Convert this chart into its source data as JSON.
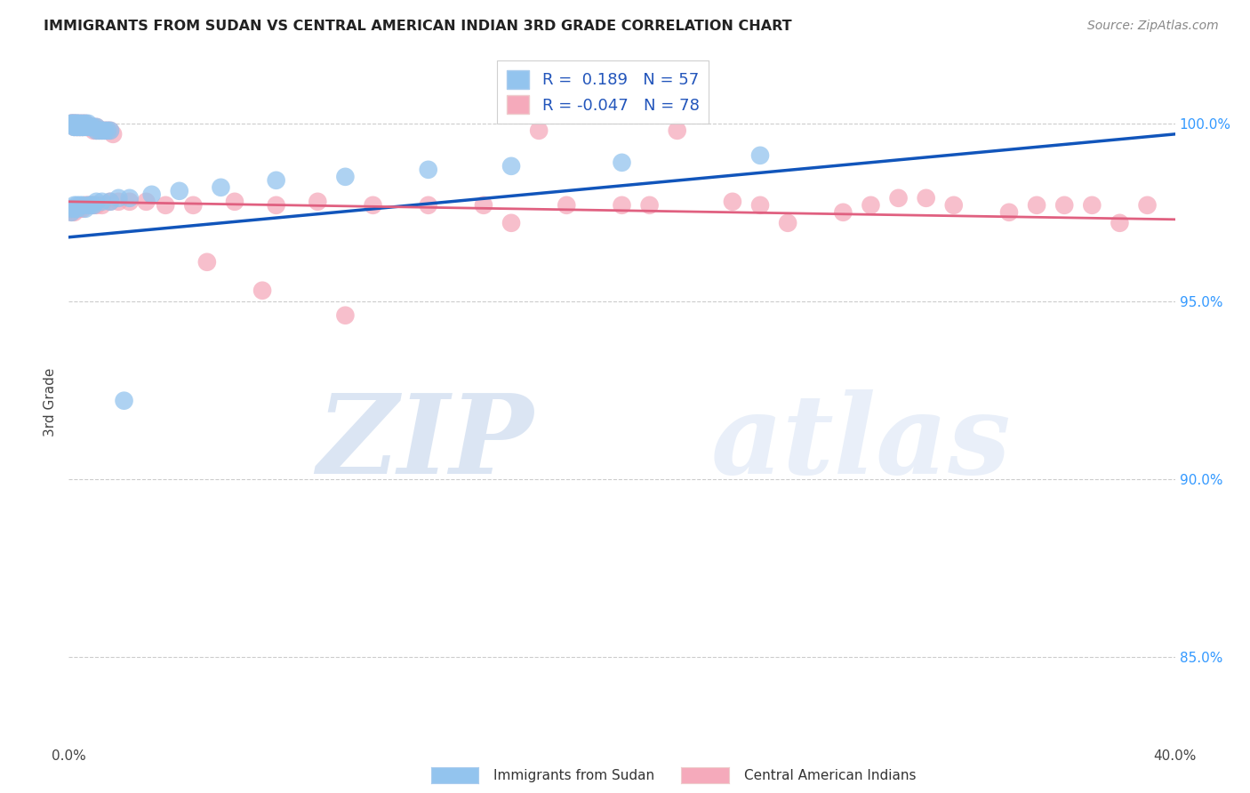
{
  "title": "IMMIGRANTS FROM SUDAN VS CENTRAL AMERICAN INDIAN 3RD GRADE CORRELATION CHART",
  "source": "Source: ZipAtlas.com",
  "ylabel": "3rd Grade",
  "x_min": 0.0,
  "x_max": 0.4,
  "y_min": 0.825,
  "y_max": 1.018,
  "y_ticks": [
    0.85,
    0.9,
    0.95,
    1.0
  ],
  "y_tick_labels": [
    "85.0%",
    "90.0%",
    "95.0%",
    "100.0%"
  ],
  "legend1_label": "Immigrants from Sudan",
  "legend2_label": "Central American Indians",
  "R1": 0.189,
  "N1": 57,
  "R2": -0.047,
  "N2": 78,
  "color_blue": "#93C4EE",
  "color_pink": "#F5AABB",
  "color_blue_line": "#1155BB",
  "color_pink_line": "#E06080",
  "watermark_zip": "ZIP",
  "watermark_atlas": "atlas",
  "grid_color": "#CCCCCC",
  "blue_x": [
    0.001,
    0.001,
    0.002,
    0.002,
    0.002,
    0.002,
    0.003,
    0.003,
    0.003,
    0.003,
    0.004,
    0.004,
    0.004,
    0.005,
    0.005,
    0.005,
    0.006,
    0.006,
    0.007,
    0.007,
    0.008,
    0.008,
    0.009,
    0.01,
    0.01,
    0.011,
    0.012,
    0.013,
    0.014,
    0.015,
    0.001,
    0.001,
    0.002,
    0.002,
    0.003,
    0.003,
    0.004,
    0.005,
    0.006,
    0.007,
    0.008,
    0.009,
    0.01,
    0.012,
    0.015,
    0.018,
    0.022,
    0.03,
    0.04,
    0.055,
    0.075,
    0.1,
    0.13,
    0.16,
    0.2,
    0.25,
    0.02
  ],
  "blue_y": [
    1.0,
    1.0,
    1.0,
    1.0,
    0.999,
    0.999,
    1.0,
    1.0,
    0.999,
    0.999,
    1.0,
    0.999,
    0.999,
    1.0,
    0.999,
    0.999,
    1.0,
    0.999,
    0.999,
    1.0,
    0.999,
    0.999,
    0.999,
    0.999,
    0.998,
    0.998,
    0.998,
    0.998,
    0.998,
    0.998,
    0.975,
    0.976,
    0.976,
    0.977,
    0.977,
    0.976,
    0.977,
    0.977,
    0.976,
    0.977,
    0.977,
    0.977,
    0.978,
    0.978,
    0.978,
    0.979,
    0.979,
    0.98,
    0.981,
    0.982,
    0.984,
    0.985,
    0.987,
    0.988,
    0.989,
    0.991,
    0.922
  ],
  "pink_x": [
    0.001,
    0.001,
    0.002,
    0.002,
    0.002,
    0.003,
    0.003,
    0.003,
    0.004,
    0.004,
    0.004,
    0.005,
    0.005,
    0.005,
    0.006,
    0.006,
    0.007,
    0.007,
    0.008,
    0.008,
    0.009,
    0.009,
    0.01,
    0.01,
    0.011,
    0.012,
    0.013,
    0.014,
    0.015,
    0.016,
    0.001,
    0.001,
    0.002,
    0.002,
    0.003,
    0.004,
    0.005,
    0.006,
    0.007,
    0.008,
    0.009,
    0.01,
    0.012,
    0.015,
    0.018,
    0.022,
    0.028,
    0.035,
    0.045,
    0.06,
    0.075,
    0.09,
    0.11,
    0.13,
    0.15,
    0.18,
    0.21,
    0.25,
    0.29,
    0.32,
    0.35,
    0.37,
    0.39,
    0.16,
    0.2,
    0.24,
    0.28,
    0.31,
    0.34,
    0.36,
    0.38,
    0.3,
    0.17,
    0.22,
    0.26,
    0.05,
    0.07,
    0.1
  ],
  "pink_y": [
    1.0,
    1.0,
    1.0,
    1.0,
    0.999,
    0.999,
    1.0,
    0.999,
    1.0,
    0.999,
    0.999,
    1.0,
    0.999,
    0.999,
    1.0,
    0.999,
    0.999,
    0.999,
    0.999,
    0.999,
    0.999,
    0.998,
    0.999,
    0.998,
    0.998,
    0.998,
    0.998,
    0.998,
    0.998,
    0.997,
    0.975,
    0.976,
    0.975,
    0.976,
    0.976,
    0.976,
    0.976,
    0.977,
    0.977,
    0.977,
    0.977,
    0.977,
    0.977,
    0.978,
    0.978,
    0.978,
    0.978,
    0.977,
    0.977,
    0.978,
    0.977,
    0.978,
    0.977,
    0.977,
    0.977,
    0.977,
    0.977,
    0.977,
    0.977,
    0.977,
    0.977,
    0.977,
    0.977,
    0.972,
    0.977,
    0.978,
    0.975,
    0.979,
    0.975,
    0.977,
    0.972,
    0.979,
    0.998,
    0.998,
    0.972,
    0.961,
    0.953,
    0.946
  ],
  "blue_line_x": [
    0.0,
    0.4
  ],
  "blue_line_y": [
    0.968,
    0.997
  ],
  "pink_line_x": [
    0.0,
    0.4
  ],
  "pink_line_y": [
    0.978,
    0.973
  ]
}
